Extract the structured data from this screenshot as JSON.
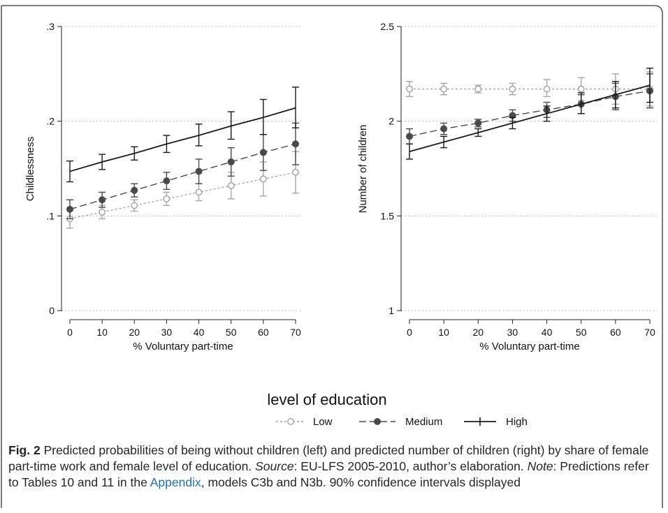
{
  "colors": {
    "low": "#a6a6a6",
    "medium": "#4a4a4a",
    "high": "#1a1a1a",
    "grid": "#bcbcbc",
    "link": "#1f6fb3"
  },
  "legend": {
    "title": "level of education",
    "items": [
      {
        "label": "Low",
        "style": "dotted-hollow-circle"
      },
      {
        "label": "Medium",
        "style": "dashed-filled-circle"
      },
      {
        "label": "High",
        "style": "solid-plus"
      }
    ]
  },
  "caption": {
    "label": "Fig. 2",
    "text1": "Predicted probabilities of being without children (left) and predicted number of children (right) by share of female part-time work and female level of education.",
    "source_label": "Source",
    "source_text": ": EU-LFS 2005-2010, author’s elaboration.",
    "note_label": "Note",
    "note_text1": ": Predictions refer to Tables 10 and 11 in the",
    "link_text": "Appendix",
    "note_text2": ", models C3b and N3b. 90% confidence intervals displayed"
  },
  "chart_data": [
    {
      "type": "line",
      "xlabel": "% Voluntary part-time",
      "ylabel": "Childlessness",
      "x": [
        0,
        10,
        20,
        30,
        40,
        50,
        60,
        70
      ],
      "xticks": [
        "0",
        "10",
        "20",
        "30",
        "40",
        "50",
        "60",
        "70"
      ],
      "xlim": [
        0,
        70
      ],
      "ylim": [
        0,
        0.3
      ],
      "yticks": [
        0,
        0.1,
        0.2,
        0.3
      ],
      "yticklabels": [
        "0",
        ".1",
        ".2",
        ".3"
      ],
      "grid": true,
      "series": [
        {
          "key": "low",
          "name": "Low",
          "values": [
            0.097,
            0.104,
            0.111,
            0.118,
            0.125,
            0.132,
            0.139,
            0.146
          ],
          "lower": [
            0.087,
            0.097,
            0.105,
            0.111,
            0.116,
            0.118,
            0.121,
            0.124
          ],
          "upper": [
            0.107,
            0.111,
            0.117,
            0.125,
            0.134,
            0.146,
            0.157,
            0.168
          ]
        },
        {
          "key": "medium",
          "name": "Medium",
          "values": [
            0.107,
            0.117,
            0.127,
            0.137,
            0.147,
            0.157,
            0.167,
            0.176
          ],
          "lower": [
            0.097,
            0.109,
            0.12,
            0.128,
            0.134,
            0.142,
            0.148,
            0.154
          ],
          "upper": [
            0.117,
            0.125,
            0.134,
            0.146,
            0.16,
            0.172,
            0.186,
            0.198
          ]
        },
        {
          "key": "high",
          "name": "High",
          "values": [
            0.147,
            0.157,
            0.166,
            0.176,
            0.185,
            0.195,
            0.204,
            0.214
          ],
          "lower": [
            0.136,
            0.149,
            0.159,
            0.167,
            0.174,
            0.181,
            0.186,
            0.193
          ],
          "upper": [
            0.158,
            0.165,
            0.173,
            0.185,
            0.197,
            0.21,
            0.223,
            0.236
          ]
        }
      ]
    },
    {
      "type": "line",
      "xlabel": "% Voluntary part-time",
      "ylabel": "Number of children",
      "x": [
        0,
        10,
        20,
        30,
        40,
        50,
        60,
        70
      ],
      "xticks": [
        "0",
        "10",
        "20",
        "30",
        "40",
        "50",
        "60",
        "70"
      ],
      "xlim": [
        0,
        70
      ],
      "ylim": [
        1,
        2.5
      ],
      "yticks": [
        1,
        1.5,
        2,
        2.5
      ],
      "yticklabels": [
        "1",
        "1.5",
        "2",
        "2.5"
      ],
      "grid": true,
      "series": [
        {
          "key": "low",
          "name": "Low",
          "values": [
            2.17,
            2.17,
            2.17,
            2.17,
            2.17,
            2.17,
            2.17,
            2.17
          ],
          "lower": [
            2.13,
            2.14,
            2.15,
            2.14,
            2.13,
            2.11,
            2.09,
            2.08
          ],
          "upper": [
            2.21,
            2.2,
            2.19,
            2.2,
            2.22,
            2.23,
            2.25,
            2.26
          ]
        },
        {
          "key": "medium",
          "name": "Medium",
          "values": [
            1.92,
            1.96,
            1.99,
            2.03,
            2.06,
            2.09,
            2.13,
            2.16
          ],
          "lower": [
            1.88,
            1.93,
            1.97,
            2.0,
            2.02,
            2.04,
            2.06,
            2.07
          ],
          "upper": [
            1.96,
            1.99,
            2.01,
            2.06,
            2.1,
            2.14,
            2.2,
            2.25
          ]
        },
        {
          "key": "high",
          "name": "High",
          "values": [
            1.84,
            1.89,
            1.94,
            1.99,
            2.04,
            2.09,
            2.14,
            2.19
          ],
          "lower": [
            1.8,
            1.86,
            1.92,
            1.96,
            2.0,
            2.04,
            2.07,
            2.1
          ],
          "upper": [
            1.88,
            1.92,
            1.96,
            2.02,
            2.08,
            2.15,
            2.21,
            2.28
          ]
        }
      ]
    }
  ]
}
